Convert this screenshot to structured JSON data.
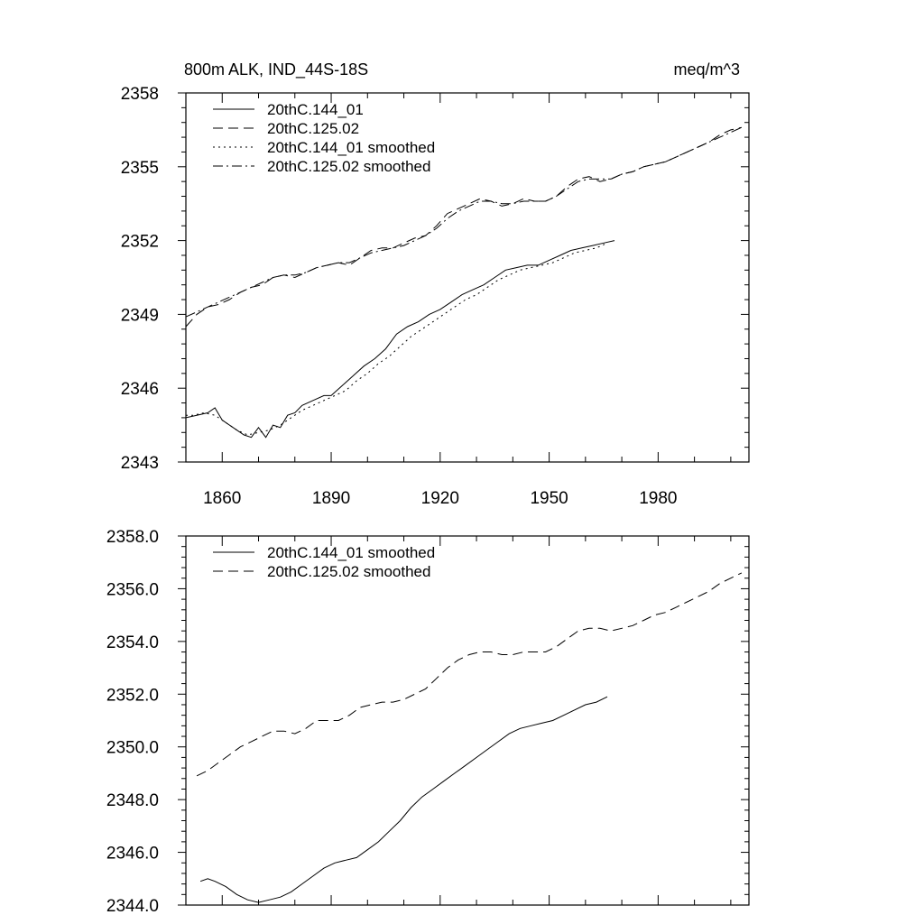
{
  "chart_data": [
    {
      "type": "line",
      "title": "800m ALK, IND_44S-18S",
      "units": "meq/m^3",
      "xlim": [
        1850,
        2005
      ],
      "ylim": [
        2343,
        2358
      ],
      "yticks": [
        "2343",
        "2346",
        "2349",
        "2352",
        "2355",
        "2358"
      ],
      "xticks": [
        "1860",
        "1890",
        "1920",
        "1950",
        "1980"
      ],
      "xtick_values": [
        1860,
        1890,
        1920,
        1950,
        1980
      ],
      "ytick_values": [
        2343,
        2346,
        2349,
        2352,
        2355,
        2358
      ],
      "legend_position": "top-left",
      "series": [
        {
          "name": "20thC.144_01",
          "style": "solid",
          "x": [
            1850,
            1853,
            1856,
            1858,
            1860,
            1863,
            1866,
            1868,
            1870,
            1872,
            1874,
            1876,
            1878,
            1880,
            1882,
            1885,
            1888,
            1890,
            1893,
            1896,
            1899,
            1902,
            1905,
            1908,
            1911,
            1914,
            1917,
            1920,
            1923,
            1926,
            1929,
            1932,
            1935,
            1938,
            1941,
            1944,
            1947,
            1950,
            1953,
            1956,
            1959,
            1962,
            1965,
            1968
          ],
          "y": [
            2344.8,
            2344.9,
            2345.0,
            2345.2,
            2344.7,
            2344.4,
            2344.1,
            2344.0,
            2344.4,
            2344.0,
            2344.5,
            2344.4,
            2344.9,
            2345.0,
            2345.3,
            2345.5,
            2345.7,
            2345.7,
            2346.1,
            2346.5,
            2346.9,
            2347.2,
            2347.6,
            2348.2,
            2348.5,
            2348.7,
            2349.0,
            2349.2,
            2349.5,
            2349.8,
            2350.0,
            2350.2,
            2350.5,
            2350.8,
            2350.9,
            2351.0,
            2351.0,
            2351.2,
            2351.4,
            2351.6,
            2351.7,
            2351.8,
            2351.9,
            2352.0
          ]
        },
        {
          "name": "20thC.125.02",
          "style": "dashed",
          "x": [
            1850,
            1853,
            1856,
            1859,
            1862,
            1865,
            1868,
            1871,
            1874,
            1877,
            1880,
            1883,
            1886,
            1889,
            1892,
            1895,
            1898,
            1901,
            1904,
            1907,
            1910,
            1913,
            1916,
            1919,
            1922,
            1925,
            1928,
            1931,
            1934,
            1937,
            1940,
            1943,
            1946,
            1949,
            1952,
            1955,
            1958,
            1961,
            1964,
            1967,
            1970,
            1973,
            1976,
            1979,
            1982,
            1985,
            1988,
            1991,
            1994,
            1997,
            2000,
            2003
          ],
          "y": [
            2348.5,
            2349.0,
            2349.3,
            2349.4,
            2349.6,
            2349.9,
            2350.1,
            2350.2,
            2350.5,
            2350.6,
            2350.5,
            2350.7,
            2350.9,
            2351.0,
            2351.1,
            2351.0,
            2351.3,
            2351.6,
            2351.7,
            2351.7,
            2351.9,
            2352.1,
            2352.2,
            2352.6,
            2353.1,
            2353.3,
            2353.5,
            2353.7,
            2353.6,
            2353.4,
            2353.5,
            2353.7,
            2353.6,
            2353.6,
            2353.8,
            2354.2,
            2354.5,
            2354.6,
            2354.4,
            2354.5,
            2354.7,
            2354.8,
            2355.0,
            2355.1,
            2355.2,
            2355.4,
            2355.6,
            2355.8,
            2356.0,
            2356.3,
            2356.5,
            2356.6
          ]
        },
        {
          "name": "20thC.144_01 smoothed",
          "style": "dotted",
          "x": [
            1850,
            1852,
            1855,
            1858,
            1861,
            1864,
            1867,
            1870,
            1873,
            1876,
            1879,
            1882,
            1885,
            1888,
            1891,
            1894,
            1897,
            1900,
            1903,
            1906,
            1909,
            1912,
            1915,
            1918,
            1921,
            1924,
            1927,
            1930,
            1933,
            1936,
            1939,
            1942,
            1945,
            1948,
            1951,
            1954,
            1957,
            1960,
            1963,
            1966
          ],
          "y": [
            2344.9,
            2344.9,
            2345.0,
            2344.9,
            2344.6,
            2344.3,
            2344.1,
            2344.2,
            2344.3,
            2344.5,
            2344.8,
            2345.1,
            2345.3,
            2345.5,
            2345.7,
            2345.9,
            2346.3,
            2346.6,
            2347.0,
            2347.3,
            2347.7,
            2348.1,
            2348.4,
            2348.7,
            2349.0,
            2349.3,
            2349.6,
            2349.8,
            2350.1,
            2350.4,
            2350.6,
            2350.8,
            2350.9,
            2351.0,
            2351.1,
            2351.3,
            2351.5,
            2351.6,
            2351.7,
            2351.9
          ]
        },
        {
          "name": "20thC.125.02 smoothed",
          "style": "dashdot",
          "x": [
            1850,
            1853,
            1856,
            1859,
            1862,
            1865,
            1868,
            1871,
            1874,
            1877,
            1880,
            1883,
            1886,
            1889,
            1892,
            1895,
            1898,
            1901,
            1904,
            1907,
            1910,
            1913,
            1916,
            1919,
            1922,
            1925,
            1928,
            1931,
            1934,
            1937,
            1940,
            1943,
            1946,
            1949,
            1952,
            1955,
            1958,
            1961,
            1964,
            1967,
            1970,
            1973,
            1976,
            1979,
            1982,
            1985,
            1988,
            1991,
            1994,
            1997,
            2000,
            2003
          ],
          "y": [
            2348.9,
            2349.1,
            2349.3,
            2349.5,
            2349.7,
            2349.9,
            2350.1,
            2350.3,
            2350.5,
            2350.6,
            2350.6,
            2350.7,
            2350.9,
            2351.0,
            2351.1,
            2351.1,
            2351.3,
            2351.5,
            2351.6,
            2351.7,
            2351.8,
            2352.0,
            2352.2,
            2352.5,
            2352.9,
            2353.2,
            2353.4,
            2353.6,
            2353.6,
            2353.5,
            2353.5,
            2353.6,
            2353.6,
            2353.6,
            2353.8,
            2354.1,
            2354.4,
            2354.5,
            2354.5,
            2354.5,
            2354.7,
            2354.8,
            2355.0,
            2355.1,
            2355.2,
            2355.4,
            2355.6,
            2355.8,
            2356.0,
            2356.2,
            2356.4,
            2356.6
          ]
        }
      ]
    },
    {
      "type": "line",
      "title": "",
      "xlim": [
        1850,
        2005
      ],
      "ylim": [
        2344.0,
        2358.0
      ],
      "yticks": [
        "2344.0",
        "2346.0",
        "2348.0",
        "2350.0",
        "2352.0",
        "2354.0",
        "2356.0",
        "2358.0"
      ],
      "ytick_values": [
        2344,
        2346,
        2348,
        2350,
        2352,
        2354,
        2356,
        2358
      ],
      "xtick_values": [
        1860,
        1890,
        1920,
        1950,
        1980
      ],
      "legend_position": "top-left",
      "series": [
        {
          "name": "20thC.144_01 smoothed",
          "style": "solid",
          "x": [
            1854,
            1856,
            1858,
            1861,
            1864,
            1867,
            1870,
            1873,
            1876,
            1879,
            1882,
            1885,
            1888,
            1891,
            1894,
            1897,
            1900,
            1903,
            1906,
            1909,
            1912,
            1915,
            1918,
            1921,
            1924,
            1927,
            1930,
            1933,
            1936,
            1939,
            1942,
            1945,
            1948,
            1951,
            1954,
            1957,
            1960,
            1963,
            1966
          ],
          "y": [
            2344.9,
            2345.0,
            2344.9,
            2344.7,
            2344.4,
            2344.2,
            2344.1,
            2344.2,
            2344.3,
            2344.5,
            2344.8,
            2345.1,
            2345.4,
            2345.6,
            2345.7,
            2345.8,
            2346.1,
            2346.4,
            2346.8,
            2347.2,
            2347.7,
            2348.1,
            2348.4,
            2348.7,
            2349.0,
            2349.3,
            2349.6,
            2349.9,
            2350.2,
            2350.5,
            2350.7,
            2350.8,
            2350.9,
            2351.0,
            2351.2,
            2351.4,
            2351.6,
            2351.7,
            2351.9
          ]
        },
        {
          "name": "20thC.125.02 smoothed",
          "style": "dashed",
          "x": [
            1853,
            1856,
            1859,
            1862,
            1865,
            1868,
            1871,
            1874,
            1877,
            1880,
            1883,
            1886,
            1889,
            1892,
            1895,
            1898,
            1901,
            1904,
            1907,
            1910,
            1913,
            1916,
            1919,
            1922,
            1925,
            1928,
            1931,
            1934,
            1937,
            1940,
            1943,
            1946,
            1949,
            1952,
            1955,
            1958,
            1961,
            1964,
            1967,
            1970,
            1973,
            1976,
            1979,
            1982,
            1985,
            1988,
            1991,
            1994,
            1997,
            2000,
            2003
          ],
          "y": [
            2348.9,
            2349.1,
            2349.4,
            2349.7,
            2350.0,
            2350.2,
            2350.4,
            2350.6,
            2350.6,
            2350.5,
            2350.7,
            2351.0,
            2351.0,
            2351.0,
            2351.2,
            2351.5,
            2351.6,
            2351.7,
            2351.7,
            2351.8,
            2352.0,
            2352.2,
            2352.6,
            2353.0,
            2353.3,
            2353.5,
            2353.6,
            2353.6,
            2353.5,
            2353.5,
            2353.6,
            2353.6,
            2353.6,
            2353.8,
            2354.1,
            2354.4,
            2354.5,
            2354.5,
            2354.4,
            2354.5,
            2354.6,
            2354.8,
            2355.0,
            2355.1,
            2355.3,
            2355.5,
            2355.7,
            2355.9,
            2356.2,
            2356.4,
            2356.6
          ]
        }
      ]
    }
  ]
}
